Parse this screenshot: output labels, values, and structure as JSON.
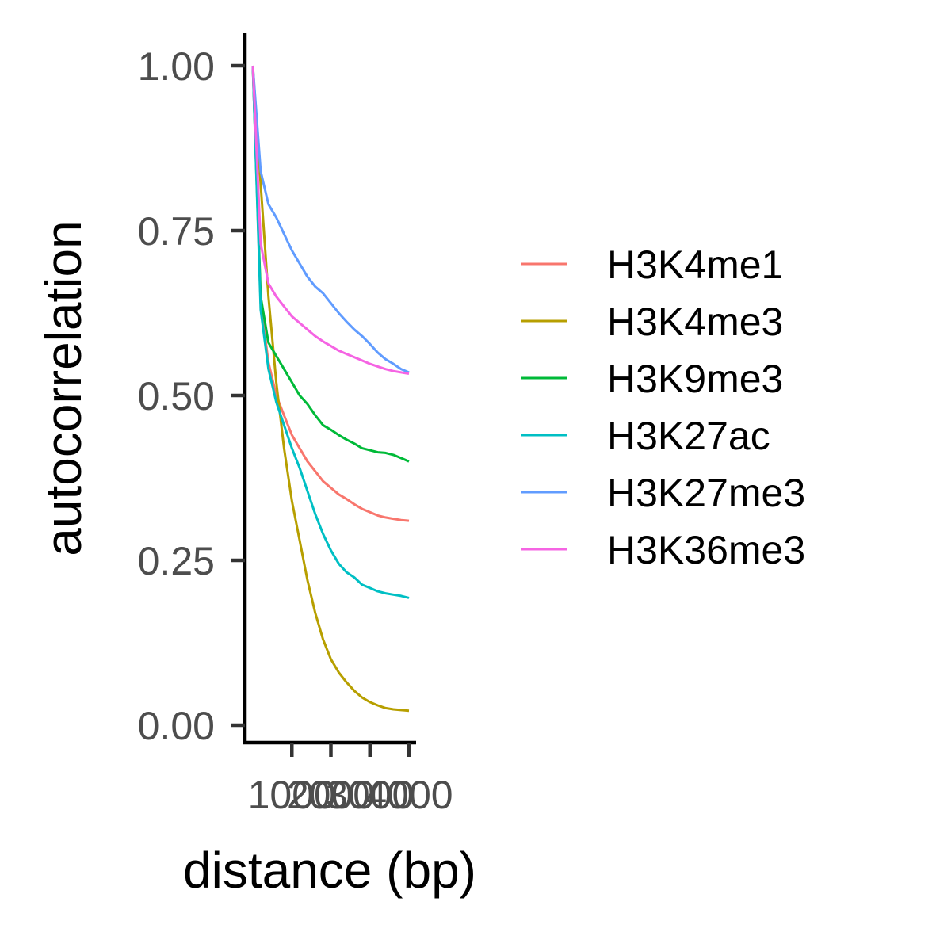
{
  "chart_data": {
    "type": "line",
    "title": "",
    "xlabel": "distance (bp)",
    "ylabel": "autocorrelation",
    "xlim": [
      0,
      4000
    ],
    "ylim": [
      0.0,
      1.0
    ],
    "x_ticks": [
      {
        "value": 1000,
        "label": "1000"
      },
      {
        "value": 2000,
        "label": "2000"
      },
      {
        "value": 3000,
        "label": "3000"
      },
      {
        "value": 4000,
        "label": "4000"
      }
    ],
    "y_ticks": [
      {
        "value": 0.0,
        "label": "0.00"
      },
      {
        "value": 0.25,
        "label": "0.25"
      },
      {
        "value": 0.5,
        "label": "0.50"
      },
      {
        "value": 0.75,
        "label": "0.75"
      },
      {
        "value": 1.0,
        "label": "1.00"
      }
    ],
    "grid": false,
    "legend_position": "right",
    "x": [
      0,
      200,
      400,
      600,
      800,
      1000,
      1200,
      1400,
      1600,
      1800,
      2000,
      2200,
      2400,
      2600,
      2800,
      3000,
      3200,
      3400,
      3600,
      3800,
      4000
    ],
    "series": [
      {
        "name": "H3K4me1",
        "color": "#F8766D",
        "values": [
          1.0,
          0.64,
          0.55,
          0.5,
          0.47,
          0.44,
          0.42,
          0.4,
          0.385,
          0.37,
          0.36,
          0.35,
          0.343,
          0.335,
          0.328,
          0.323,
          0.318,
          0.315,
          0.313,
          0.311,
          0.31
        ]
      },
      {
        "name": "H3K4me3",
        "color": "#B79F00",
        "values": [
          1.0,
          0.82,
          0.65,
          0.52,
          0.42,
          0.34,
          0.28,
          0.22,
          0.17,
          0.13,
          0.1,
          0.08,
          0.065,
          0.052,
          0.042,
          0.035,
          0.03,
          0.026,
          0.024,
          0.023,
          0.022
        ]
      },
      {
        "name": "H3K9me3",
        "color": "#00BA38",
        "values": [
          1.0,
          0.65,
          0.58,
          0.56,
          0.54,
          0.52,
          0.5,
          0.487,
          0.47,
          0.455,
          0.448,
          0.44,
          0.433,
          0.427,
          0.42,
          0.417,
          0.414,
          0.413,
          0.41,
          0.405,
          0.4
        ]
      },
      {
        "name": "H3K27ac",
        "color": "#00BFC4",
        "values": [
          1.0,
          0.63,
          0.54,
          0.49,
          0.455,
          0.42,
          0.39,
          0.355,
          0.32,
          0.29,
          0.265,
          0.245,
          0.232,
          0.224,
          0.213,
          0.208,
          0.203,
          0.2,
          0.198,
          0.196,
          0.193
        ]
      },
      {
        "name": "H3K27me3",
        "color": "#619CFF",
        "values": [
          1.0,
          0.84,
          0.79,
          0.77,
          0.745,
          0.72,
          0.7,
          0.68,
          0.665,
          0.655,
          0.64,
          0.625,
          0.612,
          0.6,
          0.59,
          0.578,
          0.565,
          0.555,
          0.548,
          0.54,
          0.535
        ]
      },
      {
        "name": "H3K36me3",
        "color": "#F564E3",
        "values": [
          1.0,
          0.73,
          0.67,
          0.65,
          0.635,
          0.62,
          0.61,
          0.6,
          0.59,
          0.582,
          0.575,
          0.568,
          0.563,
          0.558,
          0.553,
          0.548,
          0.544,
          0.54,
          0.537,
          0.535,
          0.533
        ]
      }
    ]
  }
}
